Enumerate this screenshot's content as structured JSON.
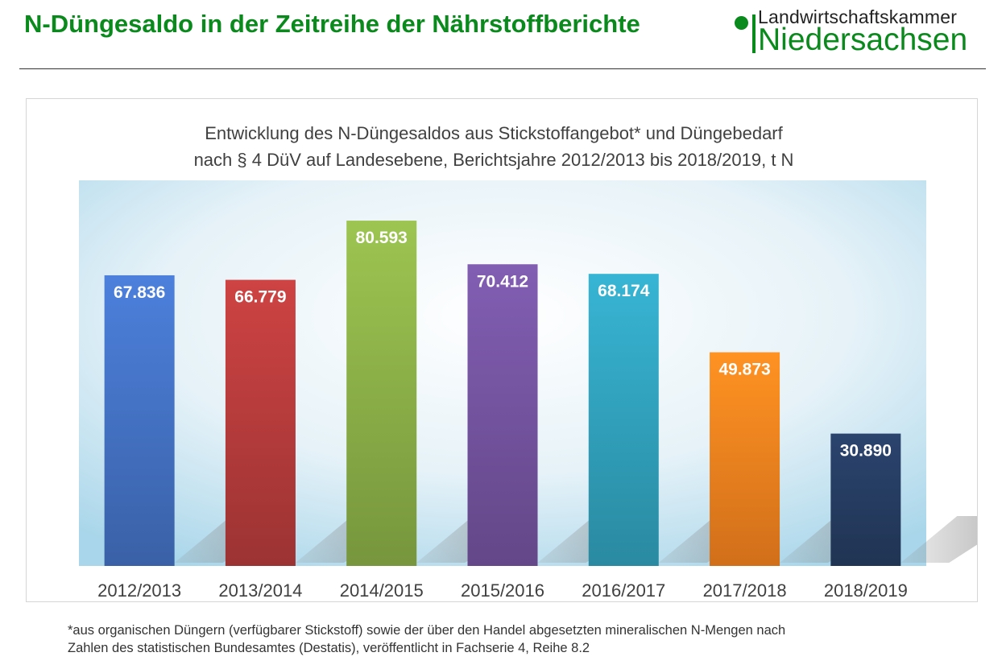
{
  "header": {
    "title": "N-Düngesaldo in der Zeitreihe der Nährstoffberichte",
    "logo_line1": "Landwirtschaftskammer",
    "logo_line2": "Niedersachsen"
  },
  "chart_data": {
    "type": "bar",
    "title": "Entwicklung des N-Düngesaldos aus Stickstoffangebot* und Düngebedarf",
    "subtitle": "nach § 4 DüV auf Landesebene, Berichtsjahre 2012/2013 bis 2018/2019, t N",
    "categories": [
      "2012/2013",
      "2013/2014",
      "2014/2015",
      "2015/2016",
      "2016/2017",
      "2017/2018",
      "2018/2019"
    ],
    "values": [
      67836,
      66779,
      80593,
      70412,
      68174,
      49873,
      30890
    ],
    "value_labels": [
      "67.836",
      "66.779",
      "80.593",
      "70.412",
      "68.174",
      "49.873",
      "30.890"
    ],
    "colors": [
      "#4472c4",
      "#b83c3c",
      "#8cb048",
      "#7454a0",
      "#31a2bd",
      "#f6821e",
      "#263d62"
    ],
    "ylim": [
      0,
      90000
    ],
    "grid": false,
    "legend": "none"
  },
  "footnote": {
    "line1": "*aus organischen Düngern (verfügbarer Stickstoff) sowie der über den Handel abgesetzten mineralischen N-Mengen nach",
    "line2": "Zahlen des statistischen Bundesamtes (Destatis), veröffentlicht in Fachserie 4, Reihe 8.2"
  }
}
